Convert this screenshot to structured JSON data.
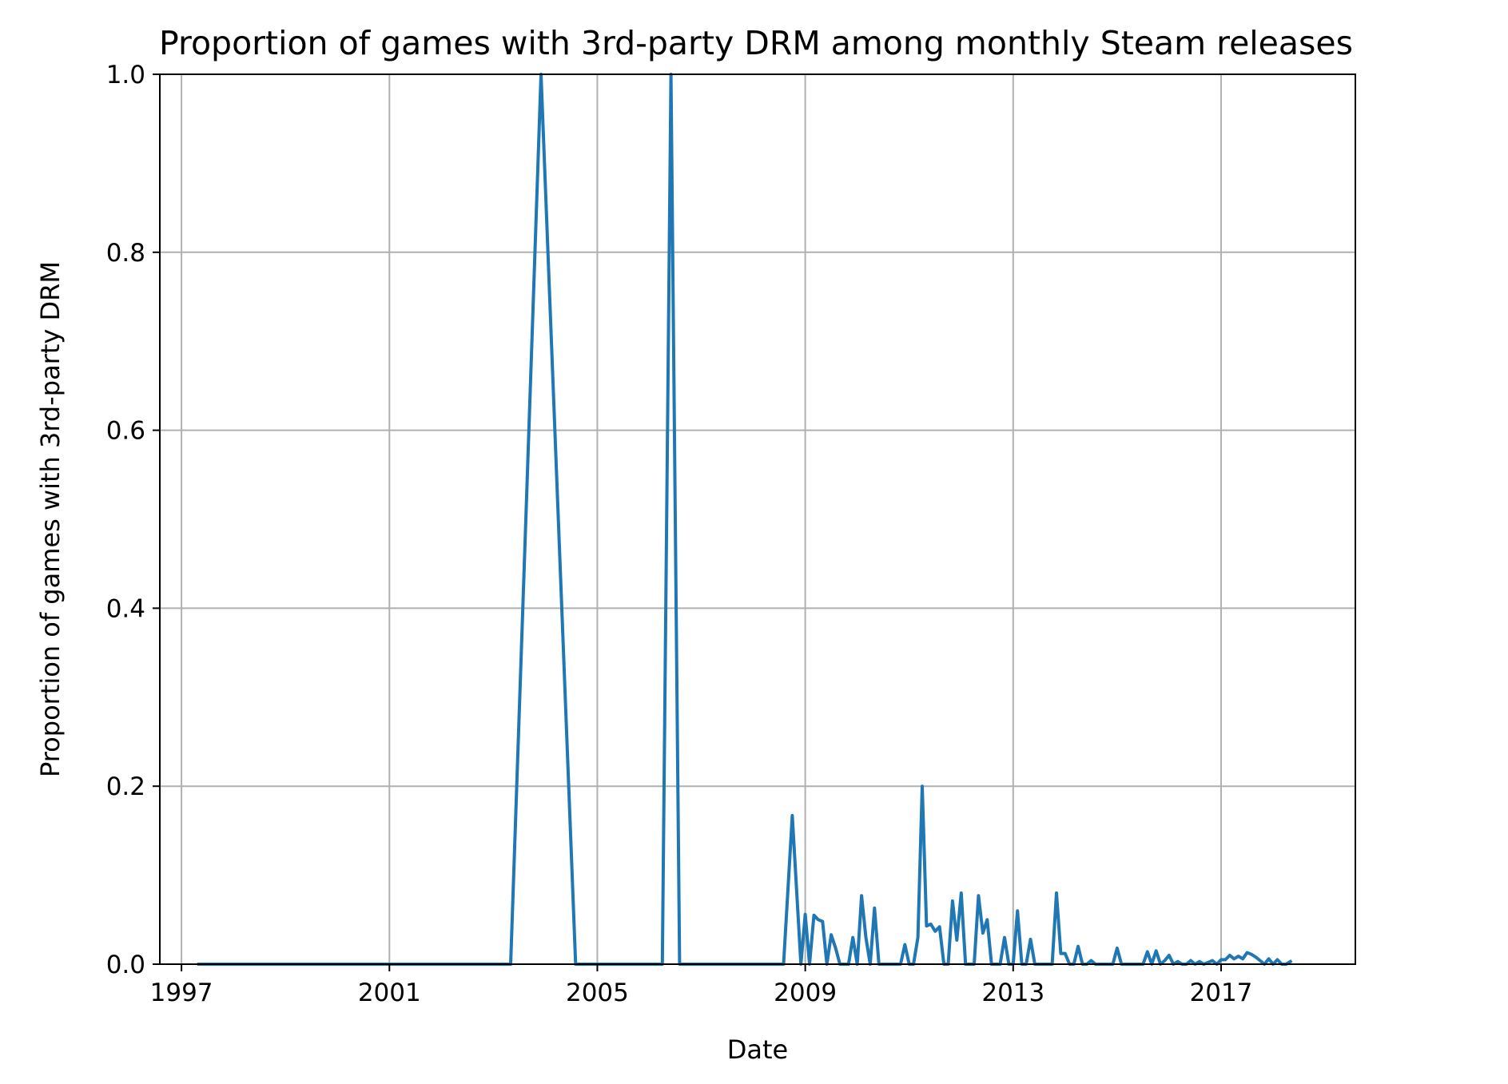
{
  "chart_data": {
    "type": "line",
    "title": "Proportion of games with 3rd-party DRM among monthly Steam releases",
    "xlabel": "Date",
    "ylabel": "Proportion of games with 3rd-party DRM",
    "xlim": [
      "1996-08-01",
      "2019-08-01"
    ],
    "ylim": [
      0,
      1.0
    ],
    "x_ticks": [
      {
        "date": "1997-01-01",
        "label": "1997"
      },
      {
        "date": "2001-01-01",
        "label": "2001"
      },
      {
        "date": "2005-01-01",
        "label": "2005"
      },
      {
        "date": "2009-01-01",
        "label": "2009"
      },
      {
        "date": "2013-01-01",
        "label": "2013"
      },
      {
        "date": "2017-01-01",
        "label": "2017"
      }
    ],
    "y_ticks": [
      {
        "value": 0.0,
        "label": "0.0"
      },
      {
        "value": 0.2,
        "label": "0.2"
      },
      {
        "value": 0.4,
        "label": "0.4"
      },
      {
        "value": 0.6,
        "label": "0.6"
      },
      {
        "value": 0.8,
        "label": "0.8"
      },
      {
        "value": 1.0,
        "label": "1.0"
      }
    ],
    "grid": true,
    "line_color": "#1f77b4",
    "series": [
      {
        "x": [
          "1997-05",
          "2003-05",
          "2003-12",
          "2004-08",
          "2006-04",
          "2006-06",
          "2006-08",
          "2008-08",
          "2008-10",
          "2008-12",
          "2009-01",
          "2009-02",
          "2009-03",
          "2009-04",
          "2009-05",
          "2009-06",
          "2009-07",
          "2009-08",
          "2009-09",
          "2009-10",
          "2009-11",
          "2009-12",
          "2010-01",
          "2010-02",
          "2010-03",
          "2010-04",
          "2010-05",
          "2010-06",
          "2010-07",
          "2010-08",
          "2010-09",
          "2010-10",
          "2010-11",
          "2010-12",
          "2011-01",
          "2011-02",
          "2011-03",
          "2011-04",
          "2011-05",
          "2011-06",
          "2011-07",
          "2011-08",
          "2011-09",
          "2011-10",
          "2011-11",
          "2011-12",
          "2012-01",
          "2012-02",
          "2012-03",
          "2012-04",
          "2012-05",
          "2012-06",
          "2012-07",
          "2012-08",
          "2012-09",
          "2012-10",
          "2012-11",
          "2012-12",
          "2013-01",
          "2013-02",
          "2013-03",
          "2013-04",
          "2013-05",
          "2013-06",
          "2013-07",
          "2013-08",
          "2013-09",
          "2013-10",
          "2013-11",
          "2013-12",
          "2014-01",
          "2014-02",
          "2014-03",
          "2014-04",
          "2014-05",
          "2014-06",
          "2014-07",
          "2014-08",
          "2014-09",
          "2014-10",
          "2014-11",
          "2014-12",
          "2015-01",
          "2015-02",
          "2015-03",
          "2015-04",
          "2015-05",
          "2015-06",
          "2015-07",
          "2015-08",
          "2015-09",
          "2015-10",
          "2015-11",
          "2015-12",
          "2016-01",
          "2016-02",
          "2016-03",
          "2016-04",
          "2016-05",
          "2016-06",
          "2016-07",
          "2016-08",
          "2016-09",
          "2016-10",
          "2016-11",
          "2016-12",
          "2017-01",
          "2017-02",
          "2017-03",
          "2017-04",
          "2017-05",
          "2017-06",
          "2017-07",
          "2017-08",
          "2017-09",
          "2017-10",
          "2017-11",
          "2017-12",
          "2018-01",
          "2018-02",
          "2018-03",
          "2018-04",
          "2018-05"
        ],
        "y": [
          0,
          0,
          1.0,
          0,
          0,
          1.0,
          0,
          0,
          0.167,
          0,
          0.056,
          0.0,
          0.055,
          0.05,
          0.048,
          0.0,
          0.033,
          0.018,
          0.0,
          0.0,
          0.0,
          0.03,
          0.0,
          0.077,
          0.03,
          0.0,
          0.063,
          0.0,
          0.0,
          0.0,
          0.0,
          0.0,
          0.0,
          0.022,
          0.0,
          0.0,
          0.03,
          0.2,
          0.043,
          0.045,
          0.037,
          0.042,
          0.0,
          0.0,
          0.071,
          0.027,
          0.08,
          0.0,
          0.0,
          0.0,
          0.077,
          0.035,
          0.05,
          0.0,
          0.0,
          0.0,
          0.03,
          0.0,
          0.0,
          0.06,
          0.0,
          0.0,
          0.028,
          0.0,
          0.0,
          0.0,
          0.0,
          0.0,
          0.08,
          0.012,
          0.012,
          0.0,
          0.0,
          0.02,
          0.0,
          0.0,
          0.004,
          0.0,
          0.0,
          0.0,
          0.0,
          0.0,
          0.018,
          0.0,
          0.0,
          0.0,
          0.0,
          0.0,
          0.0,
          0.014,
          0.0,
          0.015,
          0.0,
          0.004,
          0.01,
          0.0,
          0.003,
          0.0,
          0.0,
          0.004,
          0.0,
          0.003,
          0.0,
          0.002,
          0.004,
          0.0,
          0.005,
          0.005,
          0.01,
          0.006,
          0.009,
          0.006,
          0.013,
          0.011,
          0.008,
          0.004,
          0.0,
          0.006,
          0.0,
          0.005,
          0.0,
          0.0,
          0.003
        ]
      }
    ]
  }
}
